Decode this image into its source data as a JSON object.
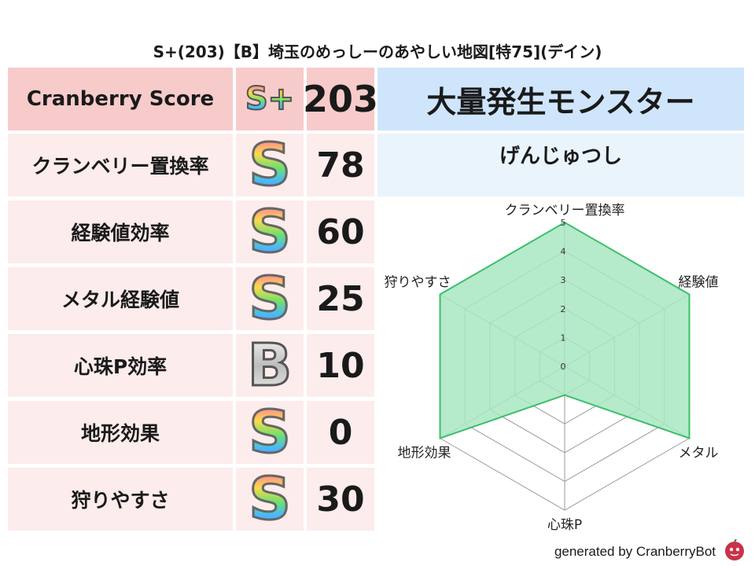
{
  "title": "S+(203)【B】埼玉のめっしーのあやしい地図[特75](デイン)",
  "header": {
    "label": "Cranberry Score",
    "rank": "S+",
    "score": "203"
  },
  "rows": [
    {
      "label": "クランベリー置換率",
      "rank": "S",
      "score": "78"
    },
    {
      "label": "経験値効率",
      "rank": "S",
      "score": "60"
    },
    {
      "label": "メタル経験値",
      "rank": "S",
      "score": "25"
    },
    {
      "label": "心珠P効率",
      "rank": "B",
      "score": "10"
    },
    {
      "label": "地形効果",
      "rank": "S",
      "score": "0"
    },
    {
      "label": "狩りやすさ",
      "rank": "S",
      "score": "30"
    }
  ],
  "monster": {
    "title": "大量発生モンスター",
    "name": "げんじゅつし"
  },
  "footer": "generated by CranberryBot",
  "chart_data": {
    "type": "radar",
    "axes": [
      "クランベリー置換率",
      "経験値",
      "メタル",
      "心珠P",
      "地形効果",
      "狩りやすさ"
    ],
    "values": [
      5,
      5,
      5,
      1,
      5,
      5
    ],
    "ticks": [
      "0",
      "1",
      "2",
      "3",
      "4",
      "5"
    ],
    "range": [
      0,
      5
    ],
    "fill_color": "#a8e6c2",
    "line_color": "#3cbf6a"
  }
}
